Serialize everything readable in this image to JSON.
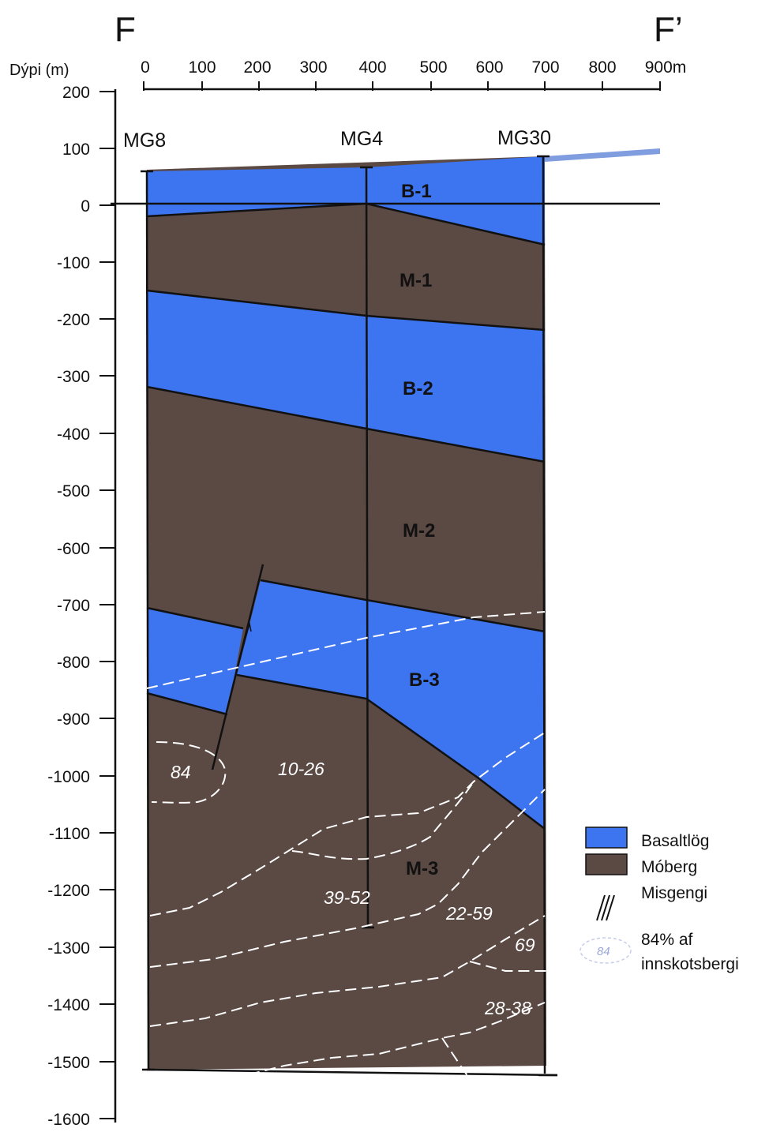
{
  "section": {
    "start_label": "F",
    "end_label": "F’"
  },
  "depth_axis": {
    "title": "Dýpi (m)",
    "ticks": [
      "200",
      "100",
      "0",
      "-100",
      "-200",
      "-300",
      "-400",
      "-500",
      "-600",
      "-700",
      "-800",
      "-900",
      "-1000",
      "-1100",
      "-1200",
      "-1300",
      "-1400",
      "-1500",
      "-1600"
    ]
  },
  "distance_axis": {
    "ticks": [
      "0",
      "100",
      "200",
      "300",
      "400",
      "500",
      "600",
      "700",
      "800",
      "900m"
    ]
  },
  "wells": [
    "MG8",
    "MG4",
    "MG30"
  ],
  "units": [
    "B-1",
    "M-1",
    "B-2",
    "M-2",
    "B-3",
    "M-3"
  ],
  "intrusion_zones": [
    "84",
    "10-26",
    "39-52",
    "22-59",
    "69",
    "28-38"
  ],
  "legend": {
    "basalt": "Basaltlög",
    "hyaloclastite": "Móberg",
    "fault": "Misgengi",
    "intrusion_sample": "84",
    "intrusion_line1": "84% af",
    "intrusion_line2": "innskotsbergi"
  },
  "colors": {
    "basalt": "#3d74f0",
    "hyaloclastite": "#5b4943",
    "zone_line": "#ffffff",
    "axis": "#111111"
  }
}
